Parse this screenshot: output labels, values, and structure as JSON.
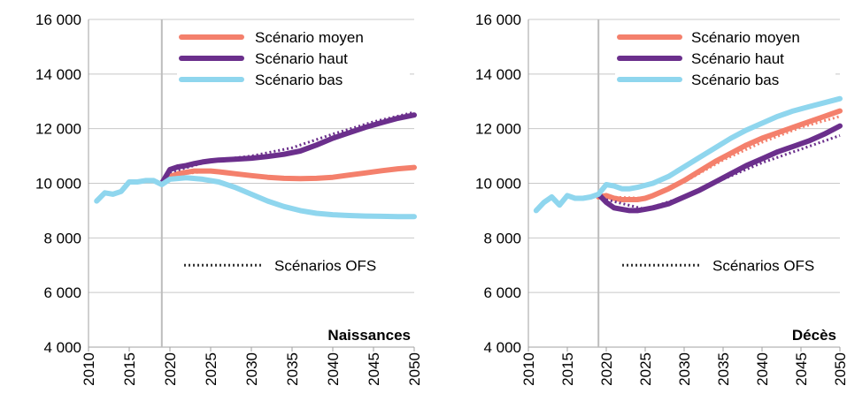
{
  "chart_data": [
    {
      "type": "line",
      "title": "Naissances",
      "xlim": [
        2010,
        2050
      ],
      "ylim": [
        4000,
        16000
      ],
      "x_ticks": [
        2010,
        2015,
        2020,
        2025,
        2030,
        2035,
        2040,
        2045,
        2050
      ],
      "x_tick_labels": [
        "2010",
        "2015",
        "2020",
        "2025",
        "2030",
        "2035",
        "2040",
        "2045",
        "2050"
      ],
      "y_ticks": [
        4000,
        6000,
        8000,
        10000,
        12000,
        14000,
        16000
      ],
      "y_tick_labels": [
        "4 000",
        "6 000",
        "8 000",
        "10 000",
        "12 000",
        "14 000",
        "16 000"
      ],
      "vline_x": 2019,
      "grid": "horizontal",
      "legend_position": "top-right",
      "legend_style": "Scénarios OFS",
      "series": [
        {
          "name": "Scénario moyen",
          "color": "#f4806c",
          "style": "solid",
          "x": [
            2019,
            2020,
            2021,
            2022,
            2023,
            2024,
            2025,
            2026,
            2028,
            2030,
            2032,
            2034,
            2036,
            2038,
            2040,
            2042,
            2044,
            2046,
            2048,
            2050
          ],
          "y": [
            10000,
            10250,
            10350,
            10400,
            10450,
            10450,
            10450,
            10420,
            10350,
            10280,
            10220,
            10180,
            10170,
            10180,
            10220,
            10300,
            10380,
            10460,
            10530,
            10580
          ]
        },
        {
          "name": "Scénario haut",
          "color": "#6b2f8c",
          "style": "solid",
          "x": [
            2019,
            2020,
            2021,
            2022,
            2023,
            2024,
            2025,
            2026,
            2028,
            2030,
            2032,
            2034,
            2036,
            2038,
            2040,
            2042,
            2044,
            2046,
            2048,
            2050
          ],
          "y": [
            10000,
            10500,
            10600,
            10650,
            10720,
            10780,
            10820,
            10850,
            10880,
            10920,
            10980,
            11060,
            11180,
            11400,
            11650,
            11850,
            12050,
            12220,
            12380,
            12500
          ]
        },
        {
          "name": "Scénario bas",
          "color": "#8fd6ee",
          "style": "solid",
          "x": [
            2011,
            2012,
            2013,
            2014,
            2015,
            2016,
            2017,
            2018,
            2019,
            2020,
            2022,
            2024,
            2026,
            2028,
            2030,
            2032,
            2034,
            2036,
            2038,
            2040,
            2042,
            2044,
            2046,
            2048,
            2050
          ],
          "y": [
            9350,
            9650,
            9600,
            9700,
            10050,
            10050,
            10100,
            10100,
            9950,
            10150,
            10200,
            10150,
            10050,
            9850,
            9600,
            9350,
            9150,
            9000,
            8900,
            8850,
            8820,
            8800,
            8790,
            8780,
            8780
          ]
        },
        {
          "name": "Scénarios OFS",
          "color": "#6b2f8c",
          "style": "dotted",
          "x": [
            2020,
            2025,
            2030,
            2035,
            2040,
            2045,
            2050
          ],
          "y": [
            10400,
            10820,
            11000,
            11300,
            11800,
            12250,
            12600
          ]
        },
        {
          "name": "Scénarios OFS",
          "color": "#f4806c",
          "style": "dotted",
          "x": [
            2020,
            2025,
            2030,
            2035,
            2040,
            2045,
            2050
          ],
          "y": [
            10300,
            10450,
            10270,
            10180,
            10220,
            10420,
            10600
          ]
        }
      ]
    },
    {
      "type": "line",
      "title": "Décès",
      "xlim": [
        2010,
        2050
      ],
      "ylim": [
        4000,
        16000
      ],
      "x_ticks": [
        2010,
        2015,
        2020,
        2025,
        2030,
        2035,
        2040,
        2045,
        2050
      ],
      "x_tick_labels": [
        "2010",
        "2015",
        "2020",
        "2025",
        "2030",
        "2035",
        "2040",
        "2045",
        "2050"
      ],
      "y_ticks": [
        4000,
        6000,
        8000,
        10000,
        12000,
        14000,
        16000
      ],
      "y_tick_labels": [
        "4 000",
        "6 000",
        "8 000",
        "10 000",
        "12 000",
        "14 000",
        "16 000"
      ],
      "vline_x": 2019,
      "grid": "horizontal",
      "legend_position": "top-right",
      "legend_style": "Scénarios OFS",
      "series": [
        {
          "name": "Scénario moyen",
          "color": "#f4806c",
          "style": "solid",
          "x": [
            2019,
            2020,
            2021,
            2022,
            2023,
            2024,
            2025,
            2026,
            2028,
            2030,
            2032,
            2034,
            2036,
            2038,
            2040,
            2042,
            2044,
            2046,
            2048,
            2050
          ],
          "y": [
            9500,
            9550,
            9450,
            9400,
            9400,
            9400,
            9450,
            9550,
            9800,
            10100,
            10450,
            10800,
            11100,
            11400,
            11650,
            11850,
            12050,
            12250,
            12450,
            12650
          ]
        },
        {
          "name": "Scénario haut",
          "color": "#6b2f8c",
          "style": "solid",
          "x": [
            2019,
            2020,
            2021,
            2022,
            2023,
            2024,
            2025,
            2026,
            2028,
            2030,
            2032,
            2034,
            2036,
            2038,
            2040,
            2042,
            2044,
            2046,
            2048,
            2050
          ],
          "y": [
            9600,
            9300,
            9100,
            9050,
            9000,
            9000,
            9050,
            9100,
            9250,
            9500,
            9750,
            10050,
            10350,
            10650,
            10900,
            11150,
            11350,
            11550,
            11800,
            12100
          ]
        },
        {
          "name": "Scénario bas",
          "color": "#8fd6ee",
          "style": "solid",
          "x": [
            2011,
            2012,
            2013,
            2014,
            2015,
            2016,
            2017,
            2018,
            2019,
            2020,
            2021,
            2022,
            2023,
            2024,
            2026,
            2028,
            2030,
            2032,
            2034,
            2036,
            2038,
            2040,
            2042,
            2044,
            2046,
            2048,
            2050
          ],
          "y": [
            9000,
            9300,
            9500,
            9200,
            9550,
            9450,
            9450,
            9500,
            9600,
            9950,
            9900,
            9800,
            9800,
            9850,
            10000,
            10250,
            10600,
            10950,
            11300,
            11650,
            11950,
            12200,
            12450,
            12650,
            12800,
            12950,
            13100
          ]
        },
        {
          "name": "Scénarios OFS",
          "color": "#6b2f8c",
          "style": "dotted",
          "x": [
            2020,
            2025,
            2030,
            2035,
            2040,
            2045,
            2050
          ],
          "y": [
            9400,
            9050,
            9500,
            10150,
            10750,
            11250,
            11750
          ]
        },
        {
          "name": "Scénarios OFS",
          "color": "#f4806c",
          "style": "dotted",
          "x": [
            2020,
            2025,
            2030,
            2035,
            2040,
            2045,
            2050
          ],
          "y": [
            9500,
            9450,
            10050,
            10850,
            11500,
            12050,
            12450
          ]
        }
      ]
    }
  ]
}
